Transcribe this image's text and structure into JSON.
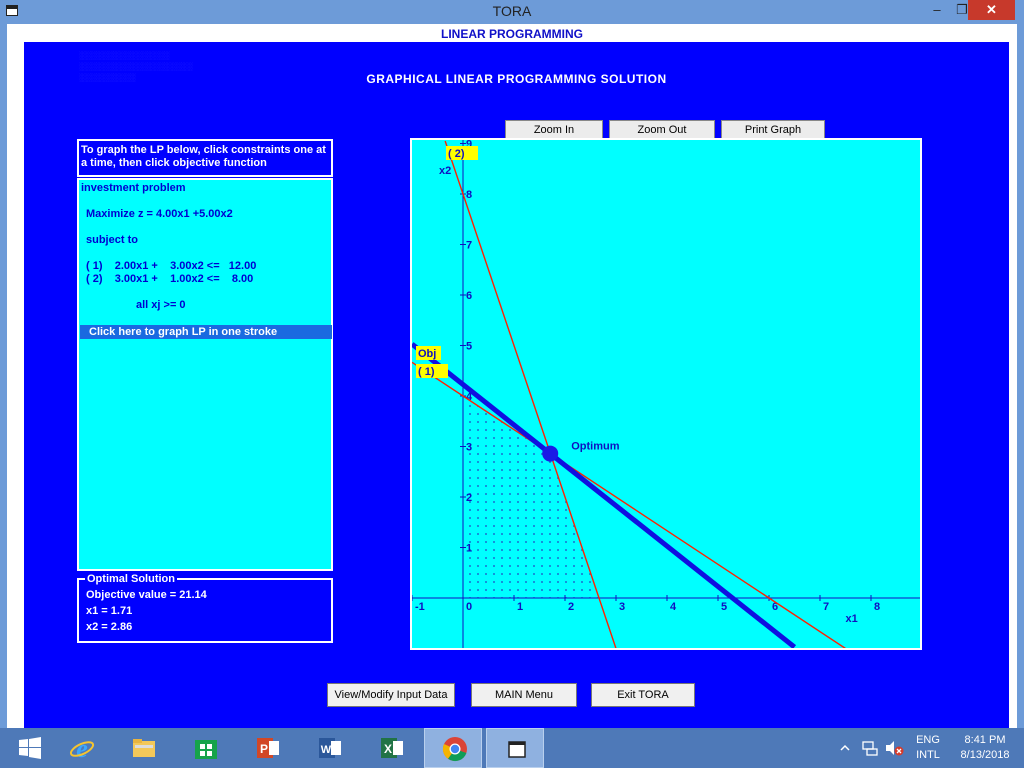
{
  "window": {
    "title": "TORA"
  },
  "header": {
    "title": "LINEAR PROGRAMMING"
  },
  "page": {
    "title": "GRAPHICAL LINEAR PROGRAMMING SOLUTION"
  },
  "instructions": "To graph the LP below, click constraints one at a time, then click objective function",
  "model": {
    "name": "investment problem",
    "objective": "Maximize z = 4.00x1 +5.00x2",
    "subject_to": "subject to",
    "constraints": [
      "( 1)    2.00x1 +    3.00x2 <=   12.00",
      "( 2)    3.00x1 +    1.00x2 <=    8.00"
    ],
    "nonneg": "all xj >= 0",
    "graph_all_label": "Click here to graph LP in one stroke"
  },
  "solution": {
    "legend": "Optimal Solution",
    "objective": "Objective value = 21.14",
    "x1": "x1 = 1.71",
    "x2": "x2 = 2.86"
  },
  "graph_buttons": {
    "zoom_in": "Zoom In",
    "zoom_out": "Zoom Out",
    "print": "Print Graph"
  },
  "bottom_buttons": {
    "modify": "View/Modify Input Data",
    "main": "MAIN Menu",
    "exit": "Exit TORA"
  },
  "chart_data": {
    "type": "line",
    "xlabel": "x1",
    "ylabel": "x2",
    "xlim": [
      -1,
      9
    ],
    "ylim": [
      -1,
      9
    ],
    "x_ticks": [
      "-1",
      "0",
      "1",
      "2",
      "3",
      "4",
      "5",
      "6",
      "7",
      "8"
    ],
    "y_ticks": [
      "1",
      "2",
      "3",
      "4",
      "5",
      "6",
      "7",
      "8",
      "9"
    ],
    "constraint_lines": [
      {
        "label": "( 1)",
        "a": 2.0,
        "b": 3.0,
        "rhs": 12.0,
        "color": "#ff2000"
      },
      {
        "label": "( 2)",
        "a": 3.0,
        "b": 1.0,
        "rhs": 8.0,
        "color": "#ff2000"
      }
    ],
    "objective_line": {
      "label": "Obj",
      "a": 4.0,
      "b": 5.0,
      "rhs": 21.14,
      "color": "#1010e0"
    },
    "optimum": {
      "label": "Optimum",
      "x1": 1.71,
      "x2": 2.86
    },
    "feasible_region": [
      [
        0,
        0
      ],
      [
        2.67,
        0
      ],
      [
        1.71,
        2.86
      ],
      [
        0,
        4
      ]
    ]
  },
  "taskbar": {
    "language": [
      "ENG",
      "INTL"
    ],
    "time": "8:41 PM",
    "date": "8/13/2018"
  },
  "colors": {
    "window_frame": "#6d9bd8",
    "app_background": "#0000ff",
    "panel_background": "#00ffff",
    "label_yellow": "#ffff00"
  }
}
